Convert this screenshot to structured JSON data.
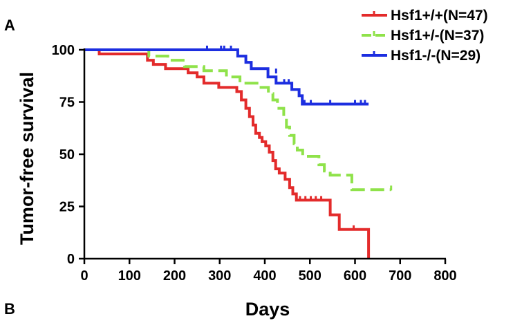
{
  "panel_labels": {
    "top": "A",
    "bottom": "B"
  },
  "chart_data": {
    "type": "line",
    "subtype": "kaplan-meier step",
    "xlabel": "Days",
    "ylabel": "Tumor-free survival",
    "xlim": [
      0,
      800
    ],
    "ylim": [
      0,
      100
    ],
    "xticks": [
      "0",
      "100",
      "200",
      "300",
      "400",
      "500",
      "600",
      "700",
      "800"
    ],
    "yticks": [
      "0",
      "25",
      "50",
      "75",
      "100"
    ],
    "grid": false,
    "legend_position": "top-right",
    "series": [
      {
        "name": "Hsf1+/+(N=47)",
        "color": "#e32b2b",
        "dash": "solid",
        "points": [
          [
            0,
            100
          ],
          [
            33,
            100
          ],
          [
            33,
            98
          ],
          [
            140,
            98
          ],
          [
            140,
            95
          ],
          [
            153,
            95
          ],
          [
            153,
            93
          ],
          [
            180,
            93
          ],
          [
            180,
            91
          ],
          [
            230,
            91
          ],
          [
            230,
            89
          ],
          [
            250,
            89
          ],
          [
            250,
            87
          ],
          [
            265,
            87
          ],
          [
            265,
            84
          ],
          [
            298,
            84
          ],
          [
            298,
            82
          ],
          [
            338,
            82
          ],
          [
            338,
            80
          ],
          [
            348,
            80
          ],
          [
            348,
            76
          ],
          [
            358,
            76
          ],
          [
            358,
            72
          ],
          [
            366,
            72
          ],
          [
            366,
            68
          ],
          [
            374,
            68
          ],
          [
            374,
            64
          ],
          [
            380,
            64
          ],
          [
            380,
            60
          ],
          [
            388,
            60
          ],
          [
            388,
            58
          ],
          [
            394,
            58
          ],
          [
            394,
            56
          ],
          [
            402,
            56
          ],
          [
            402,
            54
          ],
          [
            410,
            54
          ],
          [
            410,
            51
          ],
          [
            418,
            51
          ],
          [
            418,
            47
          ],
          [
            424,
            47
          ],
          [
            424,
            43
          ],
          [
            432,
            43
          ],
          [
            432,
            41
          ],
          [
            445,
            41
          ],
          [
            445,
            38
          ],
          [
            455,
            38
          ],
          [
            455,
            34
          ],
          [
            462,
            34
          ],
          [
            462,
            31
          ],
          [
            470,
            31
          ],
          [
            470,
            28
          ],
          [
            545,
            28
          ],
          [
            545,
            21
          ],
          [
            565,
            21
          ],
          [
            565,
            14
          ],
          [
            630,
            14
          ],
          [
            630,
            0
          ]
        ],
        "censored": [
          [
            478,
            28
          ],
          [
            490,
            28
          ],
          [
            502,
            28
          ],
          [
            513,
            28
          ],
          [
            525,
            28
          ],
          [
            597,
            14
          ]
        ]
      },
      {
        "name": "Hsf1+/-(N=37)",
        "color": "#8fe24a",
        "dash": "dashed",
        "points": [
          [
            0,
            100
          ],
          [
            143,
            100
          ],
          [
            143,
            97
          ],
          [
            185,
            97
          ],
          [
            185,
            95
          ],
          [
            222,
            95
          ],
          [
            222,
            92
          ],
          [
            265,
            92
          ],
          [
            265,
            90
          ],
          [
            315,
            90
          ],
          [
            315,
            87
          ],
          [
            345,
            87
          ],
          [
            345,
            84
          ],
          [
            388,
            84
          ],
          [
            388,
            82
          ],
          [
            408,
            82
          ],
          [
            408,
            79
          ],
          [
            418,
            79
          ],
          [
            418,
            76
          ],
          [
            428,
            76
          ],
          [
            428,
            72
          ],
          [
            442,
            72
          ],
          [
            442,
            68
          ],
          [
            448,
            68
          ],
          [
            448,
            63
          ],
          [
            455,
            63
          ],
          [
            455,
            59
          ],
          [
            465,
            59
          ],
          [
            465,
            55
          ],
          [
            472,
            55
          ],
          [
            472,
            52
          ],
          [
            484,
            52
          ],
          [
            484,
            49
          ],
          [
            520,
            49
          ],
          [
            520,
            45
          ],
          [
            532,
            45
          ],
          [
            532,
            42
          ],
          [
            545,
            42
          ],
          [
            545,
            40
          ],
          [
            593,
            40
          ],
          [
            593,
            33
          ],
          [
            680,
            33
          ]
        ],
        "censored": [
          [
            680,
            33
          ]
        ]
      },
      {
        "name": "Hsf1-/-(N=29)",
        "color": "#1c2ee0",
        "dash": "solid",
        "points": [
          [
            0,
            100
          ],
          [
            340,
            100
          ],
          [
            340,
            97
          ],
          [
            358,
            97
          ],
          [
            358,
            94
          ],
          [
            370,
            94
          ],
          [
            370,
            91
          ],
          [
            407,
            91
          ],
          [
            407,
            87
          ],
          [
            425,
            87
          ],
          [
            425,
            84
          ],
          [
            460,
            84
          ],
          [
            460,
            81
          ],
          [
            476,
            81
          ],
          [
            476,
            78
          ],
          [
            483,
            78
          ],
          [
            483,
            74
          ],
          [
            630,
            74
          ]
        ],
        "censored": [
          [
            272,
            100
          ],
          [
            303,
            100
          ],
          [
            310,
            100
          ],
          [
            325,
            100
          ],
          [
            425,
            89
          ],
          [
            443,
            84
          ],
          [
            453,
            84
          ],
          [
            488,
            74
          ],
          [
            502,
            74
          ],
          [
            545,
            74
          ],
          [
            600,
            74
          ],
          [
            613,
            74
          ],
          [
            622,
            74
          ]
        ]
      }
    ]
  }
}
